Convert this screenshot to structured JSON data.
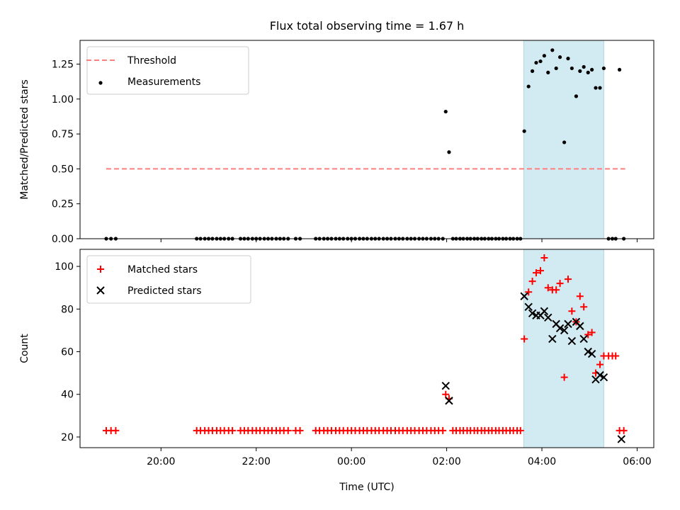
{
  "title": "Flux total observing time = 1.67 h",
  "colors": {
    "threshold": "#ff7f7f",
    "measurement": "#000000",
    "matched": "#ff0000",
    "predicted": "#000000",
    "highlight": "#add8e6"
  },
  "chart_data": [
    {
      "type": "scatter",
      "xlabel": "",
      "ylabel": "Matched/Predicted stars",
      "xlim_hours": [
        18.3,
        30.35
      ],
      "ylim": [
        0,
        1.42
      ],
      "yticks": [
        "0.00",
        "0.25",
        "0.50",
        "0.75",
        "1.00",
        "1.25"
      ],
      "ytick_values": [
        0,
        0.25,
        0.5,
        0.75,
        1.0,
        1.25
      ],
      "highlight_span_hours": [
        27.62,
        29.3
      ],
      "legend": {
        "position": "top-left",
        "entries": [
          "Threshold",
          "Measurements"
        ]
      },
      "series": [
        {
          "name": "Threshold",
          "style": "dashed-line",
          "x": [
            18.85,
            29.75
          ],
          "y": [
            0.5,
            0.5
          ]
        },
        {
          "name": "Measurements",
          "style": "dot",
          "x": [
            18.85,
            18.95,
            19.05,
            20.75,
            20.83,
            20.92,
            21.0,
            21.08,
            21.17,
            21.25,
            21.33,
            21.42,
            21.5,
            21.67,
            21.75,
            21.83,
            21.92,
            22.0,
            22.08,
            22.17,
            22.25,
            22.33,
            22.42,
            22.5,
            22.58,
            22.67,
            22.83,
            22.92,
            23.25,
            23.33,
            23.42,
            23.5,
            23.58,
            23.67,
            23.75,
            23.83,
            23.92,
            24.0,
            24.08,
            24.17,
            24.25,
            24.33,
            24.42,
            24.5,
            24.58,
            24.67,
            24.75,
            24.83,
            24.92,
            25.0,
            25.08,
            25.17,
            25.25,
            25.33,
            25.42,
            25.5,
            25.58,
            25.67,
            25.75,
            25.83,
            25.92,
            25.98,
            26.05,
            26.13,
            26.2,
            26.28,
            26.35,
            26.43,
            26.5,
            26.58,
            26.65,
            26.73,
            26.8,
            26.88,
            26.95,
            27.03,
            27.1,
            27.18,
            27.25,
            27.33,
            27.4,
            27.48,
            27.55,
            27.63,
            27.72,
            27.8,
            27.88,
            27.97,
            28.05,
            28.13,
            28.22,
            28.3,
            28.38,
            28.47,
            28.55,
            28.63,
            28.72,
            28.8,
            28.88,
            28.97,
            29.05,
            29.13,
            29.22,
            29.3,
            29.4,
            29.48,
            29.55,
            29.63,
            29.72
          ],
          "y": [
            0,
            0,
            0,
            0,
            0,
            0,
            0,
            0,
            0,
            0,
            0,
            0,
            0,
            0,
            0,
            0,
            0,
            0,
            0,
            0,
            0,
            0,
            0,
            0,
            0,
            0,
            0,
            0,
            0,
            0,
            0,
            0,
            0,
            0,
            0,
            0,
            0,
            0,
            0,
            0,
            0,
            0,
            0,
            0,
            0,
            0,
            0,
            0,
            0,
            0,
            0,
            0,
            0,
            0,
            0,
            0,
            0,
            0,
            0,
            0,
            0,
            0.91,
            0.62,
            0,
            0,
            0,
            0,
            0,
            0,
            0,
            0,
            0,
            0,
            0,
            0,
            0,
            0,
            0,
            0,
            0,
            0,
            0,
            0,
            0.77,
            1.09,
            1.2,
            1.26,
            1.27,
            1.31,
            1.19,
            1.35,
            1.22,
            1.3,
            0.69,
            1.29,
            1.22,
            1.02,
            1.2,
            1.23,
            1.19,
            1.21,
            1.08,
            1.08,
            1.22,
            0,
            0,
            0,
            1.21,
            0
          ]
        }
      ]
    },
    {
      "type": "scatter",
      "xlabel": "Time (UTC)",
      "ylabel": "Count",
      "xlim_hours": [
        18.3,
        30.35
      ],
      "ylim": [
        15,
        108
      ],
      "xticks": [
        "20:00",
        "22:00",
        "00:00",
        "02:00",
        "04:00",
        "06:00"
      ],
      "xtick_hours": [
        20,
        22,
        24,
        26,
        28,
        30
      ],
      "yticks": [
        "20",
        "40",
        "60",
        "80",
        "100"
      ],
      "ytick_values": [
        20,
        40,
        60,
        80,
        100
      ],
      "highlight_span_hours": [
        27.62,
        29.3
      ],
      "legend": {
        "position": "top-left",
        "entries": [
          "Matched stars",
          "Predicted stars"
        ]
      },
      "series": [
        {
          "name": "Matched stars",
          "style": "plus",
          "x": [
            18.85,
            18.95,
            19.05,
            20.75,
            20.83,
            20.92,
            21.0,
            21.08,
            21.17,
            21.25,
            21.33,
            21.42,
            21.5,
            21.67,
            21.75,
            21.83,
            21.92,
            22.0,
            22.08,
            22.17,
            22.25,
            22.33,
            22.42,
            22.5,
            22.58,
            22.67,
            22.83,
            22.92,
            23.25,
            23.33,
            23.42,
            23.5,
            23.58,
            23.67,
            23.75,
            23.83,
            23.92,
            24.0,
            24.08,
            24.17,
            24.25,
            24.33,
            24.42,
            24.5,
            24.58,
            24.67,
            24.75,
            24.83,
            24.92,
            25.0,
            25.08,
            25.17,
            25.25,
            25.33,
            25.42,
            25.5,
            25.58,
            25.67,
            25.75,
            25.83,
            25.92,
            25.98,
            26.05,
            26.13,
            26.2,
            26.28,
            26.35,
            26.43,
            26.5,
            26.58,
            26.65,
            26.73,
            26.8,
            26.88,
            26.95,
            27.03,
            27.1,
            27.18,
            27.25,
            27.33,
            27.4,
            27.48,
            27.55,
            27.63,
            27.72,
            27.8,
            27.88,
            27.97,
            28.05,
            28.13,
            28.22,
            28.3,
            28.38,
            28.47,
            28.55,
            28.63,
            28.72,
            28.8,
            28.88,
            28.97,
            29.05,
            29.13,
            29.22,
            29.3,
            29.4,
            29.48,
            29.55,
            29.63,
            29.72
          ],
          "y": [
            23,
            23,
            23,
            23,
            23,
            23,
            23,
            23,
            23,
            23,
            23,
            23,
            23,
            23,
            23,
            23,
            23,
            23,
            23,
            23,
            23,
            23,
            23,
            23,
            23,
            23,
            23,
            23,
            23,
            23,
            23,
            23,
            23,
            23,
            23,
            23,
            23,
            23,
            23,
            23,
            23,
            23,
            23,
            23,
            23,
            23,
            23,
            23,
            23,
            23,
            23,
            23,
            23,
            23,
            23,
            23,
            23,
            23,
            23,
            23,
            23,
            40,
            38,
            23,
            23,
            23,
            23,
            23,
            23,
            23,
            23,
            23,
            23,
            23,
            23,
            23,
            23,
            23,
            23,
            23,
            23,
            23,
            23,
            66,
            88,
            93,
            97,
            98,
            104,
            90,
            89,
            89,
            92,
            48,
            94,
            79,
            74,
            86,
            81,
            68,
            69,
            50,
            54,
            58,
            58,
            58,
            58,
            23,
            23
          ]
        },
        {
          "name": "Predicted stars",
          "style": "x",
          "x": [
            25.98,
            26.05,
            27.63,
            27.72,
            27.8,
            27.88,
            27.97,
            28.05,
            28.13,
            28.22,
            28.3,
            28.38,
            28.47,
            28.55,
            28.63,
            28.72,
            28.8,
            28.88,
            28.97,
            29.05,
            29.13,
            29.22,
            29.3,
            29.67
          ],
          "y": [
            44,
            37,
            86,
            81,
            78,
            77,
            77,
            79,
            76,
            66,
            73,
            71,
            70,
            73,
            65,
            74,
            72,
            66,
            60,
            59,
            47,
            49,
            48,
            19
          ]
        }
      ]
    }
  ]
}
